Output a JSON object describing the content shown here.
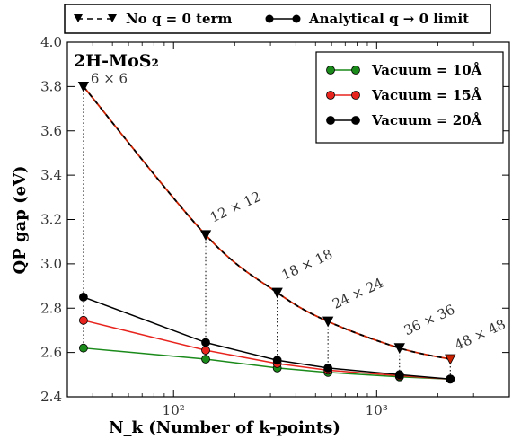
{
  "chart_data": {
    "type": "line",
    "title": "2H-MoS₂",
    "xlabel": "N_k (Number of k-points)",
    "ylabel": "QP gap (eV)",
    "xscale": "log",
    "xlim": [
      30,
      4500
    ],
    "ylim": [
      2.4,
      4.0
    ],
    "yticks": [
      "2.4",
      "2.6",
      "2.8",
      "3.0",
      "3.2",
      "3.4",
      "3.6",
      "3.8",
      "4.0"
    ],
    "xticks": [
      {
        "value": 100,
        "label": "10²"
      },
      {
        "value": 1000,
        "label": "10³"
      }
    ],
    "x": [
      36,
      144,
      324,
      576,
      1296,
      2304
    ],
    "point_labels": [
      "6 × 6",
      "12 × 12",
      "18 × 18",
      "24 × 24",
      "36 × 36",
      "48 × 48"
    ],
    "series": [
      {
        "name": "No q = 0 term",
        "values": [
          3.8,
          3.13,
          2.87,
          2.74,
          2.62,
          2.57
        ],
        "color": "#000000",
        "marker": "triangle-down",
        "style": "dashed",
        "dash_alt_color": "#cc2200"
      },
      {
        "name": "Vacuum = 10Å",
        "values": [
          2.62,
          2.57,
          2.53,
          2.51,
          2.49,
          2.48
        ],
        "color": "#1a8a1a",
        "marker": "circle"
      },
      {
        "name": "Vacuum = 15Å",
        "values": [
          2.745,
          2.61,
          2.55,
          2.52,
          2.495,
          2.48
        ],
        "color": "#e8241e",
        "marker": "circle"
      },
      {
        "name": "Vacuum = 20Å",
        "values": [
          2.85,
          2.645,
          2.565,
          2.53,
          2.5,
          2.48
        ],
        "color": "#000000",
        "marker": "circle"
      }
    ],
    "top_legend": [
      {
        "label": "No q = 0 term",
        "marker": "triangle-down"
      },
      {
        "label": "Analytical q → 0 limit",
        "marker": "circle"
      }
    ],
    "inner_legend_position": "top-right",
    "grid": false
  }
}
